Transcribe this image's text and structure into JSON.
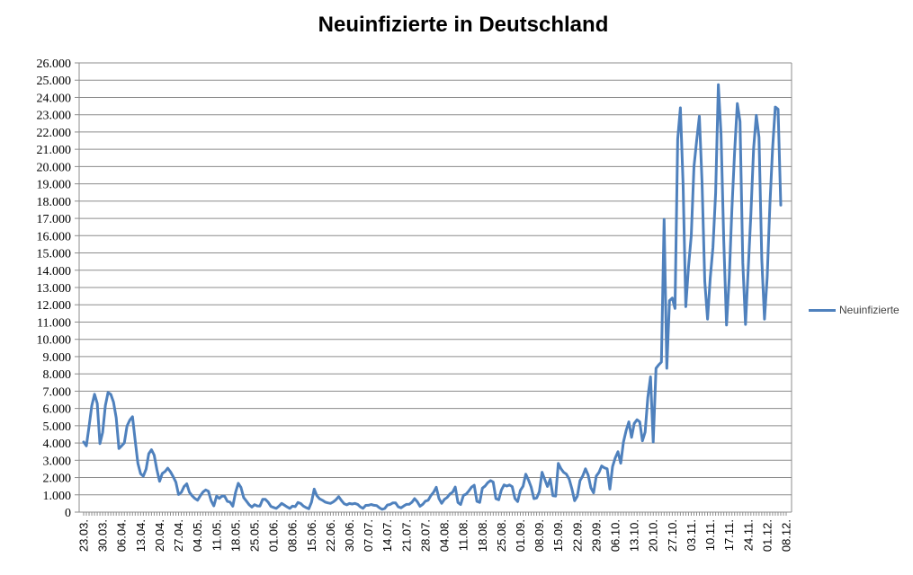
{
  "chart_data": {
    "type": "line",
    "title": "Neuinfizierte in Deutschland",
    "legend_position": "right",
    "grid": "horizontal",
    "colors": {
      "line": "#4F81BD",
      "grid": "#8C8C8C",
      "axis": "#8C8C8C",
      "text": "#000000"
    },
    "y": {
      "min": 0,
      "max": 26000,
      "step": 1000,
      "tick_labels": [
        "0",
        "1.000",
        "2.000",
        "3.000",
        "4.000",
        "5.000",
        "6.000",
        "7.000",
        "8.000",
        "9.000",
        "10.000",
        "11.000",
        "12.000",
        "13.000",
        "14.000",
        "15.000",
        "16.000",
        "17.000",
        "18.000",
        "19.000",
        "20.000",
        "21.000",
        "22.000",
        "23.000",
        "24.000",
        "25.000",
        "26.000"
      ]
    },
    "x": {
      "label_every": 7,
      "tick_labels": [
        "23.03.",
        "30.03.",
        "06.04.",
        "13.04.",
        "20.04.",
        "27.04.",
        "04.05.",
        "11.05.",
        "18.05.",
        "25.05.",
        "01.06.",
        "08.06.",
        "15.06.",
        "22.06.",
        "30.06.",
        "07.07.",
        "14.07.",
        "21.07.",
        "28.07.",
        "04.08.",
        "11.08.",
        "18.08.",
        "25.08.",
        "01.09.",
        "08.09.",
        "15.09.",
        "22.09.",
        "29.09.",
        "06.10.",
        "13.10.",
        "20.10.",
        "27.10.",
        "03.11.",
        "10.11.",
        "17.11.",
        "24.11.",
        "01.12.",
        "08.12."
      ]
    },
    "series": [
      {
        "name": "Neuinfizierte",
        "color": "#4F81BD",
        "values": [
          4062,
          3834,
          4954,
          6153,
          6824,
          6294,
          3965,
          4615,
          6156,
          6922,
          6813,
          6365,
          5453,
          3677,
          3834,
          4003,
          4974,
          5323,
          5525,
          4133,
          2821,
          2218,
          2082,
          2486,
          3380,
          3609,
          3301,
          2458,
          1785,
          2237,
          2352,
          2544,
          2337,
          2055,
          1737,
          1018,
          1144,
          1478,
          1639,
          1147,
          945,
          793,
          685,
          947,
          1165,
          1284,
          1209,
          667,
          357,
          933,
          798,
          933,
          913,
          620,
          583,
          342,
          1144,
          1668,
          1426,
          841,
          638,
          431,
          289,
          432,
          361,
          353,
          741,
          738,
          579,
          333,
          270,
          213,
          342,
          507,
          407,
          301,
          214,
          350,
          318,
          555,
          498,
          348,
          258,
          193,
          578,
          1331,
          946,
          770,
          687,
          580,
          537,
          503,
          587,
          712,
          892,
          677,
          487,
          422,
          498,
          466,
          503,
          446,
          301,
          219,
          390,
          397,
          442,
          395,
          378,
          257,
          159,
          210,
          412,
          444,
          534,
          529,
          305,
          249,
          356,
          445,
          454,
          569,
          781,
          605,
          340,
          445,
          633,
          684,
          955,
          1147,
          1442,
          785,
          509,
          741,
          846,
          1045,
          1147,
          1449,
          555,
          436,
          966,
          1042,
          1226,
          1445,
          1556,
          625,
          561,
          1390,
          1510,
          1707,
          1827,
          1737,
          782,
          711,
          1278,
          1576,
          1507,
          1571,
          1479,
          785,
          610,
          1256,
          1499,
          2194,
          1860,
          1453,
          782,
          814,
          1176,
          2307,
          1892,
          1484,
          1916,
          948,
          927,
          2821,
          2507,
          2297,
          2194,
          1901,
          1345,
          660,
          922,
          1821,
          2089,
          2507,
          2143,
          1411,
          1111,
          2089,
          2298,
          2673,
          2563,
          2507,
          1332,
          2639,
          3139,
          3497,
          2828,
          4058,
          4721,
          5223,
          4325,
          5132,
          5345,
          5223,
          4122,
          4632,
          6638,
          7830,
          4058,
          8323,
          8523,
          8685,
          16947,
          8323,
          12239,
          12393,
          11787,
          21584,
          23399,
          18987,
          11892,
          14177,
          16017,
          19990,
          21506,
          22909,
          19059,
          13363,
          11169,
          13554,
          15332,
          18487,
          24740,
          21866,
          15741,
          10824,
          13554,
          17561,
          20864,
          23648,
          22609,
          14419,
          10864,
          14054,
          17270,
          21046,
          22964,
          21695,
          14611,
          11169,
          13604,
          17767,
          21046,
          23449,
          23318,
          17767,
          null,
          null
        ]
      }
    ]
  }
}
